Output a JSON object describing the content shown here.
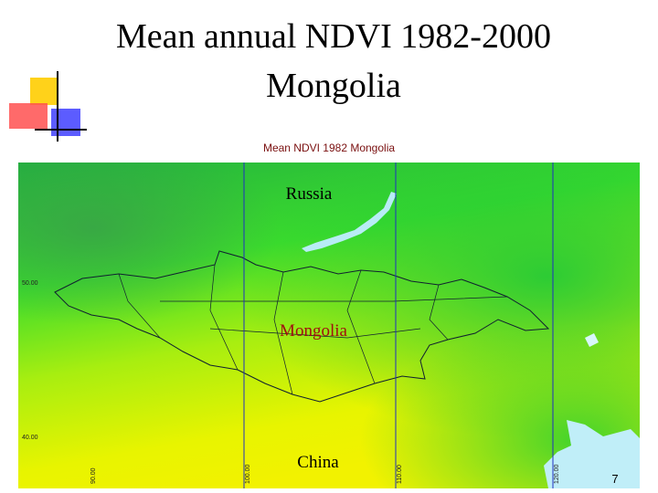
{
  "header": {
    "title_lines": [
      "Mean annual NDVI 1982-2000",
      "Mongolia"
    ]
  },
  "map": {
    "title": "Mean NDVI 1982 Mongolia",
    "labels": [
      "Russia",
      "Mongolia",
      "China"
    ],
    "lat_labels": [
      "50.00",
      "40.00"
    ],
    "lon_labels": [
      "90.00",
      "100.00",
      "110.00",
      "120.00"
    ]
  },
  "footer": {
    "page_number": "7"
  }
}
